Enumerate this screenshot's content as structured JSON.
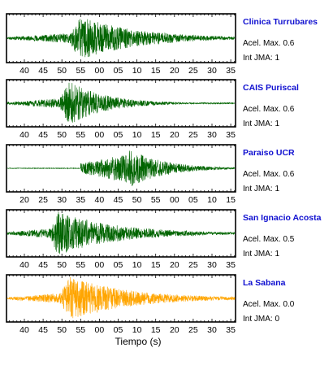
{
  "chart_data": [
    {
      "type": "line",
      "station": "Clinica Turrubares",
      "acel_label": "Acel. Max. 0.6",
      "jma_label": "Int JMA: 1",
      "color": "#006400",
      "tick_labels": [
        "40",
        "45",
        "50",
        "55",
        "00",
        "05",
        "10",
        "15",
        "20",
        "25",
        "30",
        "35"
      ],
      "signal_start": 35,
      "signal_peak": 55,
      "signal_end": 125,
      "amplitude": 0.95
    },
    {
      "type": "line",
      "station": "CAIS Puriscal",
      "acel_label": "Acel. Max. 0.6",
      "jma_label": "Int JMA: 1",
      "color": "#006400",
      "tick_labels": [
        "40",
        "45",
        "50",
        "55",
        "00",
        "05",
        "10",
        "15",
        "20",
        "25",
        "30",
        "35"
      ],
      "signal_start": 35,
      "signal_peak": 52,
      "signal_end": 95,
      "amplitude": 1.0
    },
    {
      "type": "line",
      "station": "Paraiso UCR",
      "acel_label": "Acel. Max. 0.6",
      "jma_label": "Int JMA: 1",
      "color": "#006400",
      "tick_labels": [
        "20",
        "25",
        "30",
        "35",
        "40",
        "45",
        "50",
        "55",
        "00",
        "05",
        "10",
        "15"
      ],
      "signal_start": 35,
      "signal_peak": 50,
      "signal_end": 80,
      "amplitude": 0.9
    },
    {
      "type": "line",
      "station": "San Ignacio Acosta",
      "acel_label": "Acel. Max. 0.5",
      "jma_label": "Int JMA: 1",
      "color": "#006400",
      "tick_labels": [
        "40",
        "45",
        "50",
        "55",
        "00",
        "05",
        "10",
        "15",
        "20",
        "25",
        "30",
        "35"
      ],
      "signal_start": 35,
      "signal_peak": 49,
      "signal_end": 120,
      "amplitude": 1.0
    },
    {
      "type": "line",
      "station": "La Sabana",
      "acel_label": "Acel. Max. 0.0",
      "jma_label": "Int JMA: 0",
      "color": "#FFA500",
      "tick_labels": [
        "40",
        "45",
        "50",
        "55",
        "00",
        "05",
        "10",
        "15",
        "20",
        "25",
        "30",
        "35"
      ],
      "signal_start": 35,
      "signal_peak": 52,
      "signal_end": 125,
      "amplitude": 1.0
    }
  ],
  "xlabel": "Tiempo (s)"
}
